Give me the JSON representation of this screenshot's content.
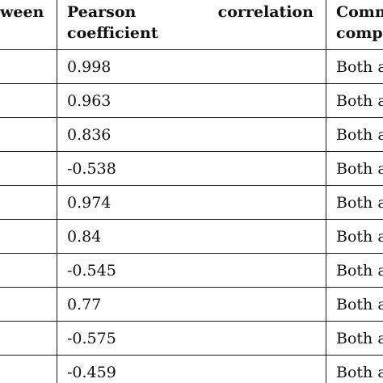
{
  "headers": {
    "between": "ween",
    "pearson_word1": "Pearson",
    "pearson_word2": "correlation",
    "pearson_line2": "coefficient",
    "comment_line1": "Comm",
    "comment_line2": "comp"
  },
  "rows": [
    {
      "value": "0.998",
      "comment": "Both a"
    },
    {
      "value": "0.963",
      "comment": "Both a"
    },
    {
      "value": "0.836",
      "comment": "Both a"
    },
    {
      "value": "-0.538",
      "comment": "Both a"
    },
    {
      "value": "0.974",
      "comment": "Both a"
    },
    {
      "value": "0.84",
      "comment": "Both a"
    },
    {
      "value": "-0.545",
      "comment": "Both a"
    },
    {
      "value": "0.77",
      "comment": "Both a"
    },
    {
      "value": "-0.575",
      "comment": "Both a"
    },
    {
      "value": "-0.459",
      "comment": "Both a"
    }
  ]
}
